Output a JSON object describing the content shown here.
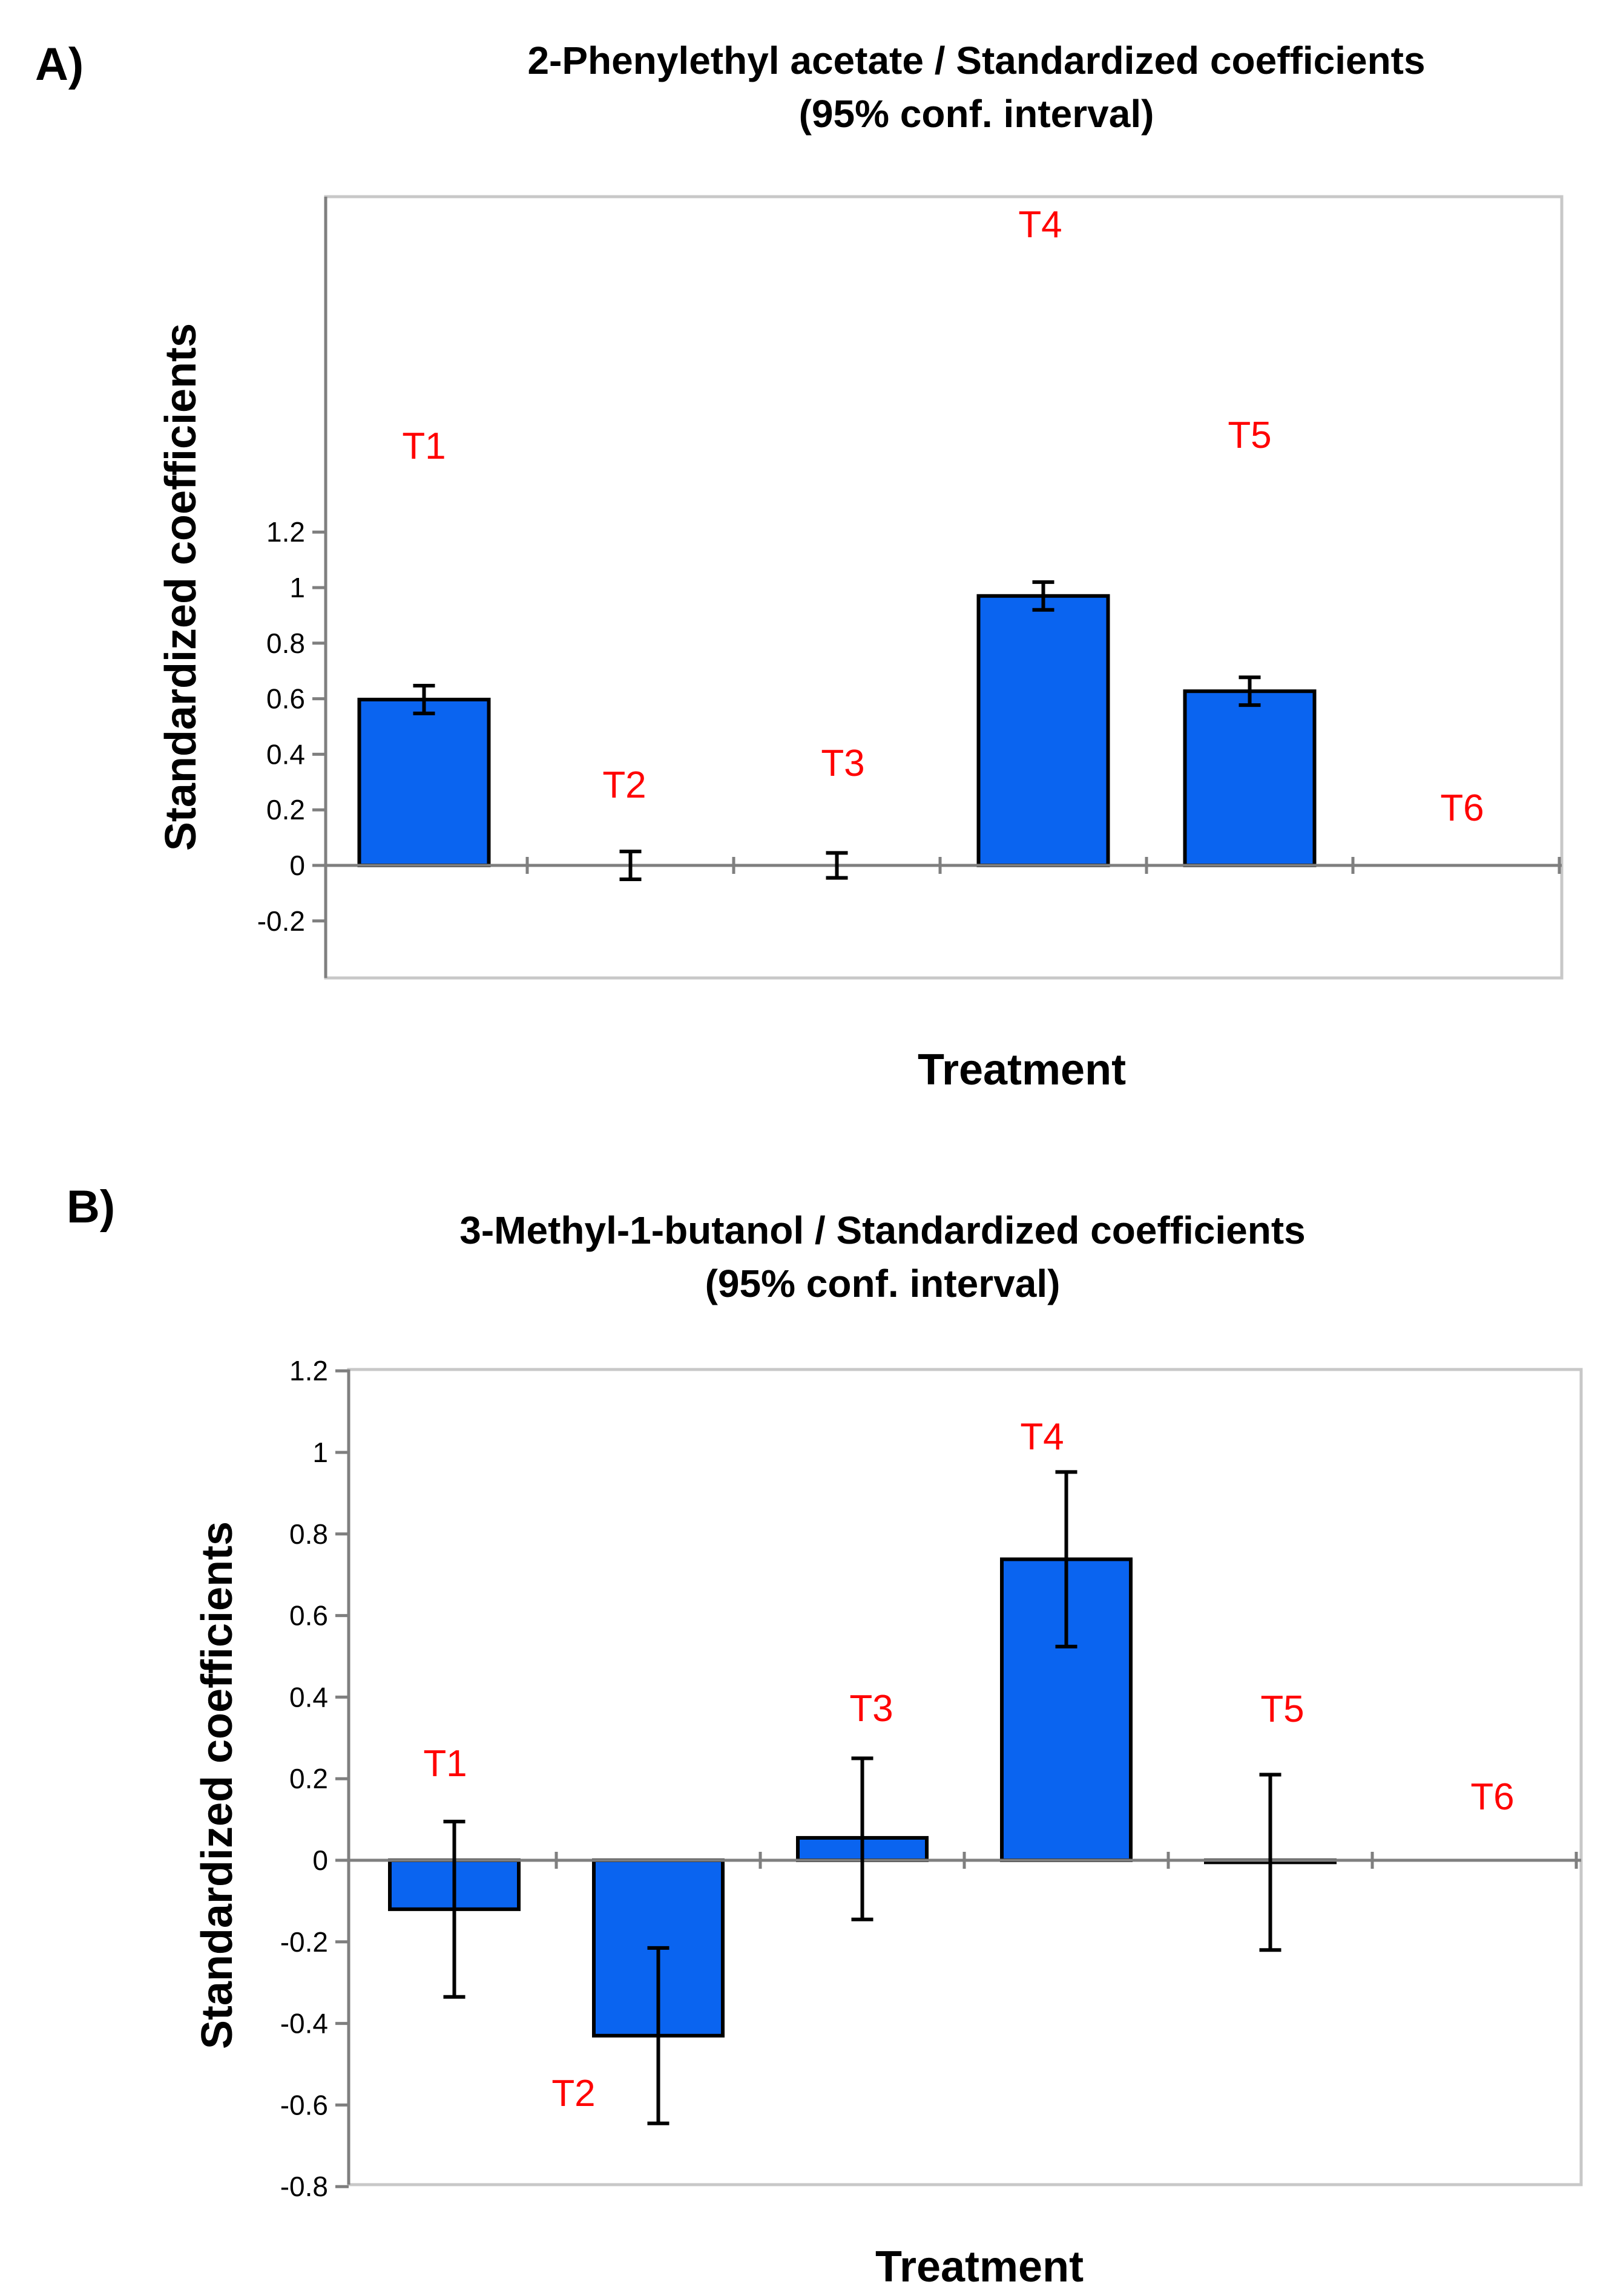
{
  "chart_data": [
    {
      "panel_label": "A)",
      "type": "bar",
      "title_lines": [
        "2-Phenylethyl acetate / Standardized coefficients",
        "(95% conf. interval)"
      ],
      "xlabel": "Treatment",
      "ylabel": "Standardized coefficients",
      "ylim": [
        -0.2,
        1.2
      ],
      "yticks": [
        -0.2,
        0,
        0.2,
        0.4,
        0.6,
        0.8,
        1,
        1.2
      ],
      "ytick_labels": [
        "-0.2",
        "0",
        "0.2",
        "0.4",
        "0.6",
        "0.8",
        "1",
        "1.2"
      ],
      "grid": false,
      "categories": [
        "T1",
        "T2",
        "T3",
        "T4",
        "T5",
        "T6"
      ],
      "values": [
        0.597,
        0,
        0,
        0.97,
        0.627,
        0
      ],
      "error_low": [
        0.547,
        -0.05,
        -0.045,
        0.92,
        0.577,
        null
      ],
      "error_high": [
        0.647,
        0.05,
        0.045,
        1.02,
        0.677,
        null
      ],
      "bar_color": "#0a64f0",
      "label_color": "#ff0000"
    },
    {
      "panel_label": "B)",
      "type": "bar",
      "title_lines": [
        "3-Methyl-1-butanol / Standardized coefficients",
        "(95% conf. interval)"
      ],
      "xlabel": "Treatment",
      "ylabel": "Standardized coefficients",
      "ylim": [
        -0.8,
        1.2
      ],
      "yticks": [
        -0.8,
        -0.6,
        -0.4,
        -0.2,
        0,
        0.2,
        0.4,
        0.6,
        0.8,
        1,
        1.2
      ],
      "ytick_labels": [
        "-0.8",
        "-0.6",
        "-0.4",
        "-0.2",
        "0",
        "0.2",
        "0.4",
        "0.6",
        "0.8",
        "1",
        "1.2"
      ],
      "grid": false,
      "categories": [
        "T1",
        "T2",
        "T3",
        "T4",
        "T5",
        "T6"
      ],
      "values": [
        -0.12,
        -0.43,
        0.055,
        0.738,
        -0.005,
        0
      ],
      "error_low": [
        -0.335,
        -0.645,
        -0.145,
        0.524,
        -0.22,
        null
      ],
      "error_high": [
        0.095,
        -0.215,
        0.25,
        0.952,
        0.21,
        null
      ],
      "bar_color": "#0a64f0",
      "label_color": "#ff0000"
    }
  ]
}
